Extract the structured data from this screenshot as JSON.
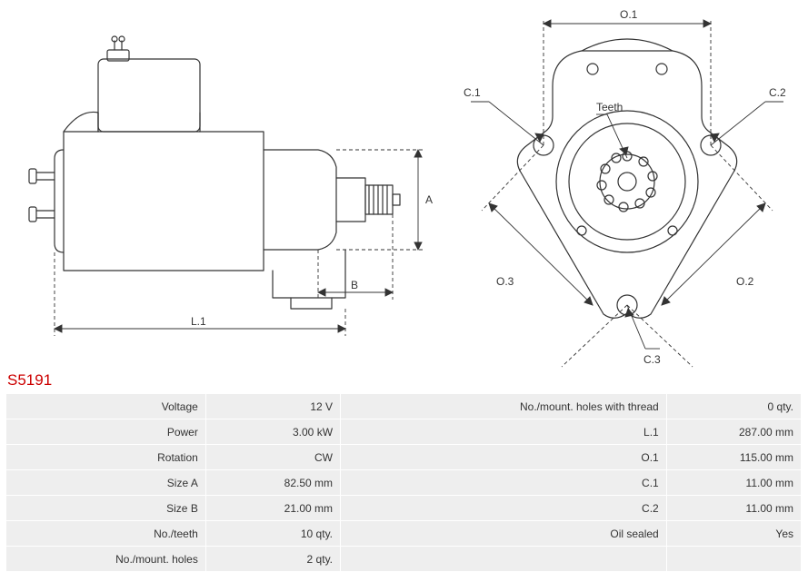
{
  "part_code": "S5191",
  "diagram_left": {
    "labels": {
      "A": "A",
      "B": "B",
      "L1": "L.1"
    },
    "stroke": "#333333",
    "dash": "4,3",
    "linewidth": 1
  },
  "diagram_right": {
    "labels": {
      "O1": "O.1",
      "O2": "O.2",
      "O3": "O.3",
      "C1": "C.1",
      "C2": "C.2",
      "C3": "C.3",
      "Teeth": "Teeth"
    },
    "stroke": "#333333",
    "linewidth": 1
  },
  "specs_left": [
    {
      "label": "Voltage",
      "value": "12 V"
    },
    {
      "label": "Power",
      "value": "3.00 kW"
    },
    {
      "label": "Rotation",
      "value": "CW"
    },
    {
      "label": "Size A",
      "value": "82.50 mm"
    },
    {
      "label": "Size B",
      "value": "21.00 mm"
    },
    {
      "label": "No./teeth",
      "value": "10 qty."
    },
    {
      "label": "No./mount. holes",
      "value": "2 qty."
    }
  ],
  "specs_right": [
    {
      "label": "No./mount. holes with thread",
      "value": "0 qty."
    },
    {
      "label": "L.1",
      "value": "287.00 mm"
    },
    {
      "label": "O.1",
      "value": "115.00 mm"
    },
    {
      "label": "C.1",
      "value": "11.00 mm"
    },
    {
      "label": "C.2",
      "value": "11.00 mm"
    },
    {
      "label": "Oil sealed",
      "value": "Yes"
    },
    {
      "label": "",
      "value": ""
    }
  ],
  "colors": {
    "row_bg": "#eeeeee",
    "text": "#333333",
    "code": "#cc0000",
    "stroke": "#333333"
  }
}
